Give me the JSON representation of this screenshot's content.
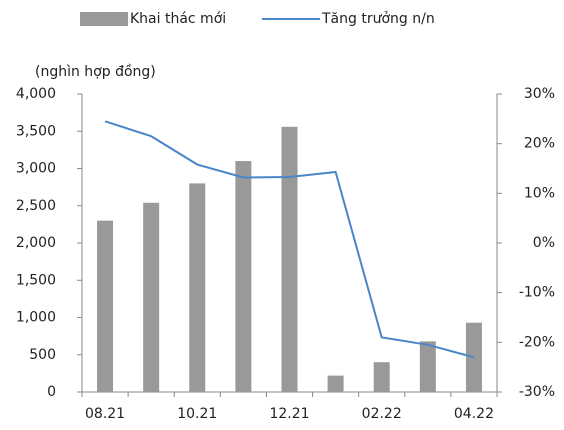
{
  "chart_data": {
    "type": "bar",
    "y_label": "(nghìn hợp đồng)",
    "categories": [
      "08.21",
      null,
      "10.21",
      null,
      "12.21",
      null,
      "02.22",
      null,
      "04.22"
    ],
    "series": [
      {
        "name": "Khai thác mới",
        "color": "#999999",
        "values": [
          2300,
          2540,
          2800,
          3100,
          3560,
          220,
          400,
          680,
          930
        ]
      },
      {
        "name": "Tăng trưởng n/n",
        "color": "#4a86c8",
        "axis": "y2",
        "values": [
          24.5,
          21.5,
          15.8,
          13.2,
          13.3,
          14.3,
          -19,
          -20.5,
          -23
        ]
      }
    ],
    "ylim": [
      0,
      4000
    ],
    "yticks": [
      0,
      500,
      {
        "value": 1000,
        "label": "1,000"
      },
      {
        "value": 1500,
        "label": "1,500"
      },
      {
        "value": 2000,
        "label": "2,000"
      },
      {
        "value": 2500,
        "label": "2,500"
      },
      {
        "value": 3000,
        "label": "3,000"
      },
      {
        "value": 3500,
        "label": "3,500"
      },
      {
        "value": 4000,
        "label": "4,000"
      }
    ],
    "y2lim": [
      -30,
      30
    ],
    "y2ticks": [
      {
        "value": -30,
        "label": "-30%"
      },
      {
        "value": -20,
        "label": "-20%"
      },
      {
        "value": -10,
        "label": "-10%"
      },
      {
        "value": 0,
        "label": "0%"
      },
      {
        "value": 10,
        "label": "10%"
      },
      {
        "value": 20,
        "label": "20%"
      },
      {
        "value": 30,
        "label": "30%"
      }
    ]
  }
}
